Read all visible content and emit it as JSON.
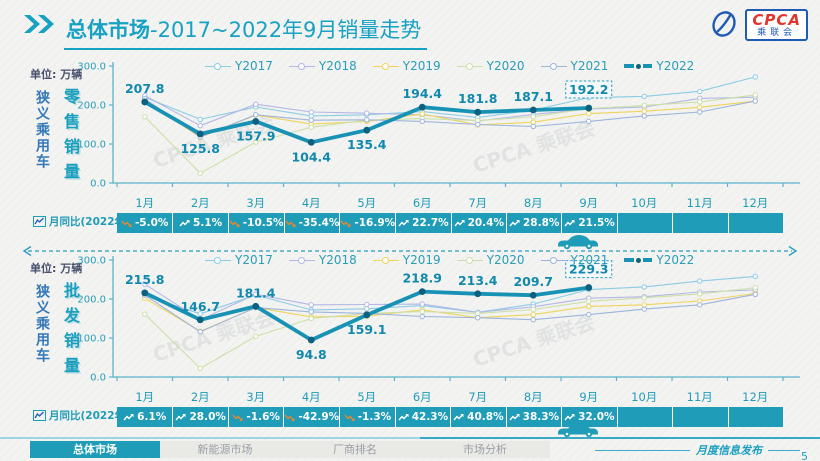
{
  "header": {
    "title_strong": "总体市场",
    "title_rest": "-2017~2022年9月销量走势",
    "logo_main": "CPCA",
    "logo_sub": "乘联会"
  },
  "watermark": "CPCA 乘联会",
  "colors": {
    "accent": "#1b9fbe",
    "axis": "#5ab4c9",
    "yoy_bar_bg": "#1f9cb8",
    "positive_icon": "#ffffff",
    "negative_icon": "#e8862f",
    "emphasis_dot": "#0d617f",
    "label_text": "#1089ad"
  },
  "chart_data": [
    {
      "type": "line",
      "title": "狭义乘用车零售销量",
      "side_label": "狭义乘用车",
      "metric_label": "零售销量",
      "unit_text": "单位: 万辆",
      "ylim": [
        0,
        300
      ],
      "yticks": [
        "0.0",
        "100.0",
        "200.0",
        "300.0"
      ],
      "months": [
        "1月",
        "2月",
        "3月",
        "4月",
        "5月",
        "6月",
        "7月",
        "8月",
        "9月",
        "10月",
        "11月",
        "12月"
      ],
      "series": [
        {
          "name": "Y2017",
          "color": "#8bcce6",
          "values": [
            220,
            163,
            195,
            172,
            175,
            183,
            168,
            187,
            219,
            222,
            235,
            272
          ]
        },
        {
          "name": "Y2018",
          "color": "#b3b8e6",
          "values": [
            224,
            147,
            202,
            182,
            179,
            175,
            159,
            176,
            190,
            195,
            217,
            220
          ]
        },
        {
          "name": "Y2019",
          "color": "#eed45e",
          "values": [
            212,
            117,
            174,
            151,
            158,
            177,
            149,
            156,
            178,
            184,
            194,
            210
          ]
        },
        {
          "name": "Y2020",
          "color": "#cce0a8",
          "values": [
            170,
            25,
            105,
            143,
            161,
            165,
            160,
            170,
            191,
            199,
            208,
            226
          ]
        },
        {
          "name": "Y2021",
          "color": "#9db4dd",
          "values": [
            216,
            118,
            175,
            161,
            162,
            158,
            150,
            145,
            158,
            172,
            182,
            210
          ]
        },
        {
          "name": "Y2022",
          "color": "#1792b4",
          "emphasis": true,
          "values": [
            207.8,
            125.8,
            157.9,
            104.4,
            135.4,
            194.4,
            181.8,
            187.1,
            192.2
          ],
          "labels": [
            "207.8",
            "125.8",
            "157.9",
            "104.4",
            "135.4",
            "194.4",
            "181.8",
            "187.1",
            "192.2"
          ],
          "highlight_index": 8
        }
      ],
      "yoy_label": "月同比(2022年)",
      "yoy": [
        "-5.0%",
        "5.1%",
        "-10.5%",
        "-35.4%",
        "-16.9%",
        "22.7%",
        "20.4%",
        "28.8%",
        "21.5%",
        "",
        "",
        ""
      ]
    },
    {
      "type": "line",
      "title": "狭义乘用车批发销量",
      "side_label": "狭义乘用车",
      "metric_label": "批发销量",
      "unit_text": "单位: 万辆",
      "ylim": [
        0,
        300
      ],
      "yticks": [
        "0.0",
        "100.0",
        "200.0",
        "300.0"
      ],
      "months": [
        "1月",
        "2月",
        "3月",
        "4月",
        "5月",
        "6月",
        "7月",
        "8月",
        "9月",
        "10月",
        "11月",
        "12月"
      ],
      "series": [
        {
          "name": "Y2017",
          "color": "#8bcce6",
          "values": [
            208,
            162,
            210,
            172,
            175,
            183,
            166,
            187,
            224,
            231,
            246,
            258
          ]
        },
        {
          "name": "Y2018",
          "color": "#b3b8e6",
          "values": [
            238,
            147,
            212,
            185,
            186,
            187,
            166,
            180,
            202,
            206,
            218,
            223
          ]
        },
        {
          "name": "Y2019",
          "color": "#eed45e",
          "values": [
            202,
            117,
            178,
            154,
            156,
            172,
            152,
            160,
            181,
            185,
            195,
            214
          ]
        },
        {
          "name": "Y2020",
          "color": "#cce0a8",
          "values": [
            161,
            22,
            104,
            150,
            163,
            168,
            163,
            173,
            194,
            203,
            213,
            229
          ]
        },
        {
          "name": "Y2021",
          "color": "#9db4dd",
          "values": [
            210,
            116,
            178,
            167,
            163,
            155,
            152,
            147,
            160,
            174,
            185,
            212
          ]
        },
        {
          "name": "Y2022",
          "color": "#1792b4",
          "emphasis": true,
          "values": [
            215.8,
            146.7,
            181.4,
            94.8,
            159.1,
            218.9,
            213.4,
            209.7,
            229.3
          ],
          "labels": [
            "215.8",
            "146.7",
            "181.4",
            "94.8",
            "159.1",
            "218.9",
            "213.4",
            "209.7",
            "229.3"
          ],
          "highlight_index": 8
        }
      ],
      "yoy_label": "月同比(2022年)",
      "yoy": [
        "6.1%",
        "28.0%",
        "-1.6%",
        "-42.9%",
        "-1.3%",
        "42.3%",
        "40.8%",
        "38.3%",
        "32.0%",
        "",
        "",
        ""
      ]
    }
  ],
  "nav": {
    "tabs": [
      {
        "label": "总体市场",
        "active": true
      },
      {
        "label": "新能源市场",
        "active": false
      },
      {
        "label": "厂商排名",
        "active": false
      },
      {
        "label": "市场分析",
        "active": false
      }
    ]
  },
  "footer": {
    "center_label": "月度信息发布",
    "page": "5"
  }
}
